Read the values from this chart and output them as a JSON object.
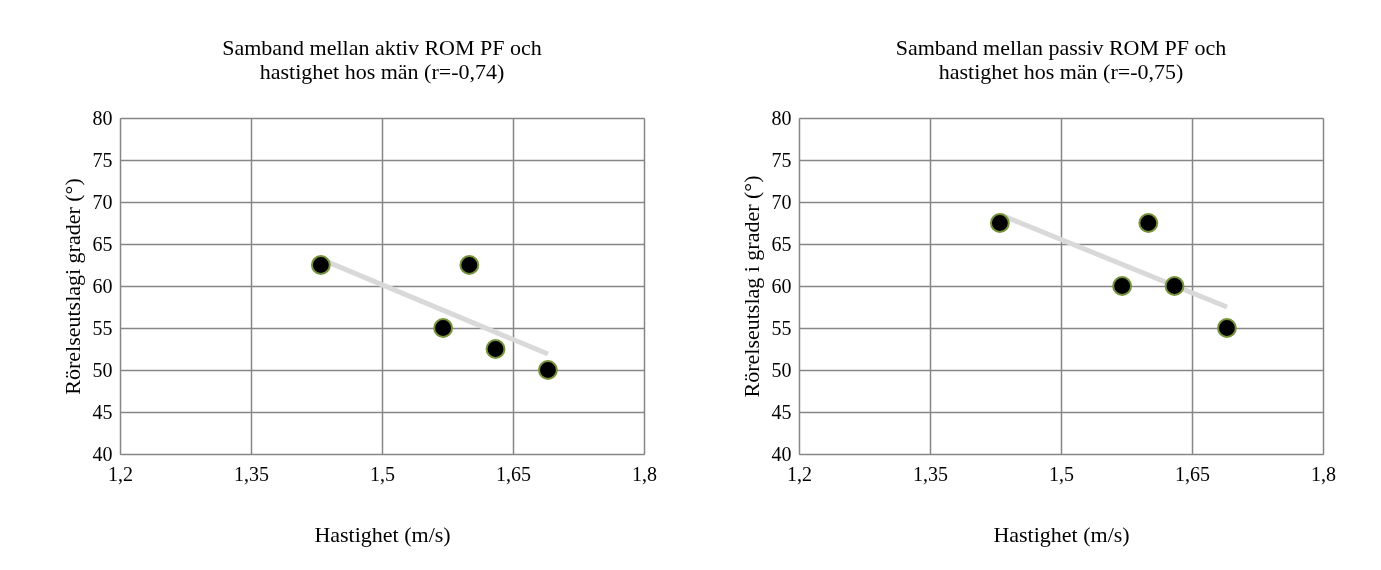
{
  "chart_data": [
    {
      "type": "scatter",
      "title": [
        "Samband mellan aktiv ROM PF och",
        "hastighet hos män (r=-0,74)"
      ],
      "xlabel": "Hastighet (m/s)",
      "ylabel": "Rörelseutslagi grader (°)",
      "xlim": [
        1.2,
        1.8
      ],
      "xticks": [
        {
          "value": 1.2,
          "label": "1,2"
        },
        {
          "value": 1.35,
          "label": "1,35"
        },
        {
          "value": 1.5,
          "label": "1,5"
        },
        {
          "value": 1.65,
          "label": "1,65"
        },
        {
          "value": 1.8,
          "label": "1,8"
        }
      ],
      "ylim": [
        40,
        80
      ],
      "yticks": [
        40,
        45,
        50,
        55,
        60,
        65,
        70,
        75,
        80
      ],
      "grid": true,
      "marker": "circle",
      "series": [
        {
          "type": "line",
          "color": "#d9d9d9",
          "line_style": "solid",
          "marker": "none",
          "x": [
            1.43,
            1.69
          ],
          "values": [
            63.2,
            51.9
          ]
        },
        {
          "color": "#000000",
          "x": [
            1.43,
            1.57,
            1.6,
            1.63,
            1.69
          ],
          "values": [
            62.5,
            55,
            62.5,
            52.5,
            50
          ]
        }
      ]
    },
    {
      "type": "scatter",
      "title": [
        "Samband mellan passiv ROM PF och",
        "hastighet hos män (r=-0,75)"
      ],
      "xlabel": "Hastighet (m/s)",
      "ylabel": "Rörelseutslag i grader (°)",
      "xlim": [
        1.2,
        1.8
      ],
      "xticks": [
        {
          "value": 1.2,
          "label": "1,2"
        },
        {
          "value": 1.35,
          "label": "1,35"
        },
        {
          "value": 1.5,
          "label": "1,5"
        },
        {
          "value": 1.65,
          "label": "1,65"
        },
        {
          "value": 1.8,
          "label": "1,8"
        }
      ],
      "ylim": [
        40,
        80
      ],
      "yticks": [
        40,
        45,
        50,
        55,
        60,
        65,
        70,
        75,
        80
      ],
      "grid": true,
      "marker": "circle",
      "series": [
        {
          "type": "line",
          "color": "#d9d9d9",
          "line_style": "solid",
          "marker": "none",
          "x": [
            1.43,
            1.69
          ],
          "values": [
            68.5,
            57.5
          ]
        },
        {
          "color": "#000000",
          "x": [
            1.43,
            1.57,
            1.6,
            1.63,
            1.69
          ],
          "values": [
            67.5,
            60,
            67.5,
            60,
            55
          ]
        }
      ]
    }
  ]
}
